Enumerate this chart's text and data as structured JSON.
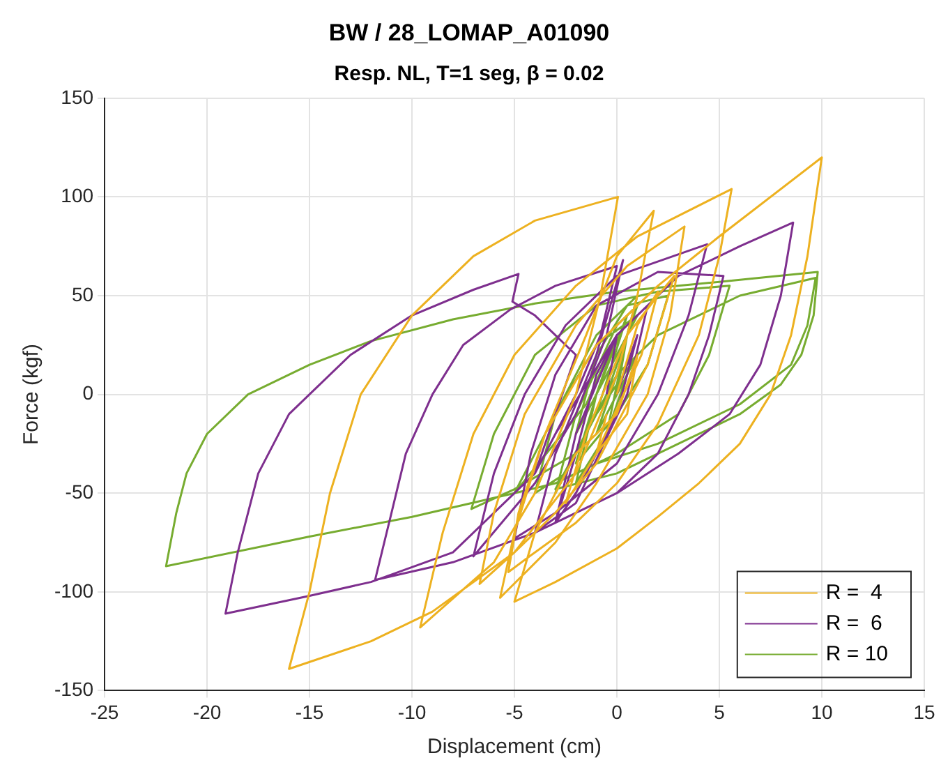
{
  "chart_data": {
    "type": "line",
    "title": "BW / 28_LOMAP_A01090",
    "subtitle": "Resp. NL, T=1 seg, β = 0.02",
    "xlabel": "Displacement (cm)",
    "ylabel": "Force (kgf)",
    "xlim": [
      -25,
      15
    ],
    "xticks": [
      -25,
      -20,
      -15,
      -10,
      -5,
      0,
      5,
      10,
      15
    ],
    "ylim": [
      -150,
      150
    ],
    "yticks": [
      -150,
      -100,
      -50,
      0,
      50,
      100,
      150
    ],
    "grid": true,
    "legend": "bottom right",
    "marker": "none",
    "line_style": "solid",
    "series": [
      {
        "name": "R =  4",
        "color": "#edb120",
        "x": [
          0,
          1,
          2,
          1.2,
          -1,
          -2.5,
          -1.5,
          0.5,
          2,
          2.8,
          1.5,
          -1,
          -3,
          -5,
          -6.7,
          -6,
          -4.5,
          -2,
          0.5,
          3.3,
          2.6,
          1.5,
          -1,
          -3,
          -5.7,
          -5,
          -3.5,
          -1.5,
          0,
          1.8,
          1,
          0,
          -2,
          -5,
          -9,
          -12,
          -16,
          -15,
          -14,
          -12.5,
          -10,
          -7,
          -4,
          0.05,
          -0.8,
          -2,
          -4,
          -6,
          -9.6,
          -8.5,
          -7,
          -5,
          -2,
          1,
          5.6,
          5,
          4,
          2,
          0,
          -2,
          -4,
          -5.3,
          -4.8,
          -3.5,
          -1,
          2,
          5,
          10,
          9.3,
          8.5,
          7.5,
          6,
          4,
          2,
          0,
          -3,
          -5,
          -4,
          -2,
          0,
          1,
          0.5,
          -1,
          -0.5
        ],
        "values": [
          0,
          35,
          52,
          20,
          -30,
          -55,
          -20,
          30,
          50,
          60,
          15,
          -35,
          -60,
          -80,
          -96,
          -60,
          -10,
          35,
          65,
          85,
          40,
          0,
          -45,
          -75,
          -103,
          -70,
          -20,
          30,
          70,
          93,
          50,
          10,
          -40,
          -80,
          -110,
          -125,
          -139,
          -100,
          -50,
          0,
          40,
          70,
          88,
          100,
          50,
          0,
          -50,
          -85,
          -118,
          -70,
          -20,
          20,
          55,
          80,
          104,
          70,
          30,
          -15,
          -45,
          -65,
          -80,
          -90,
          -60,
          -20,
          25,
          55,
          80,
          120,
          70,
          30,
          0,
          -25,
          -45,
          -62,
          -78,
          -95,
          -105,
          -70,
          -30,
          -10,
          20,
          -10,
          -30,
          -10
        ]
      },
      {
        "name": "R =  6",
        "color": "#7e2f8e",
        "x": [
          0,
          1,
          0,
          -2,
          -3,
          -2,
          0,
          1.5,
          0.5,
          -2,
          -4,
          -3,
          -1,
          0.3,
          -0.5,
          -2,
          -4,
          -7,
          -6,
          -4.5,
          -2.5,
          0,
          4.4,
          3.5,
          2,
          0,
          -3,
          -5,
          -4.2,
          -3,
          -1,
          2,
          5.2,
          4.5,
          3.5,
          2,
          0,
          -4,
          -8,
          -11.8,
          -11,
          -10.3,
          -9,
          -7.5,
          -5.2,
          -3,
          0,
          -0.8,
          -2,
          -4,
          -8,
          -12,
          -15,
          -19.1,
          -18.5,
          -17.5,
          -16,
          -13,
          -10,
          -7,
          -4.8,
          -5.1,
          -4,
          -2,
          -3,
          -4,
          -3,
          0,
          3,
          6,
          8.6,
          8,
          7,
          5.5,
          3,
          0,
          -3,
          -2,
          -1,
          0,
          -0.5
        ],
        "values": [
          0,
          30,
          -10,
          -50,
          -65,
          -20,
          30,
          45,
          0,
          -55,
          -70,
          -30,
          20,
          68,
          30,
          -10,
          -45,
          -82,
          -40,
          0,
          35,
          60,
          76,
          40,
          0,
          -35,
          -60,
          -73,
          -30,
          10,
          45,
          62,
          60,
          30,
          0,
          -30,
          -50,
          -70,
          -85,
          -94,
          -60,
          -30,
          0,
          25,
          43,
          55,
          65,
          30,
          0,
          -40,
          -80,
          -95,
          -102,
          -111,
          -80,
          -40,
          -10,
          20,
          40,
          53,
          61,
          47,
          40,
          20,
          -10,
          -40,
          -20,
          30,
          60,
          75,
          87,
          50,
          15,
          -10,
          -30,
          -50,
          -65,
          -30,
          10,
          30,
          0
        ]
      },
      {
        "name": "R = 10",
        "color": "#77ac30",
        "x": [
          0,
          0.5,
          -0.5,
          -2,
          -1,
          0.5,
          -1,
          -3,
          -2,
          0,
          1,
          -0.5,
          -2.5,
          -4,
          -3,
          -1,
          1,
          0,
          -2,
          -5,
          -7.1,
          -6,
          -4,
          -1,
          2,
          5.5,
          4.5,
          3,
          0,
          -3,
          -5,
          -3,
          -1,
          1,
          -0.5,
          -2,
          -1,
          0.5,
          2.5,
          1.5,
          0,
          -2,
          -1,
          0,
          -1.5,
          -5,
          -10,
          -15,
          -22,
          -21.5,
          -21,
          -20,
          -18,
          -15,
          -12,
          -8,
          -4,
          0,
          5,
          9.8,
          9.6,
          9,
          8,
          6,
          3,
          0,
          -3,
          -1,
          1,
          -1,
          0,
          2,
          6,
          9.7,
          9.3,
          8.5,
          6,
          2,
          -1,
          0.5
        ],
        "values": [
          0,
          30,
          -20,
          -45,
          0,
          40,
          -10,
          -50,
          -10,
          35,
          45,
          0,
          -40,
          -50,
          -10,
          30,
          50,
          10,
          -30,
          -48,
          -58,
          -20,
          20,
          45,
          52,
          55,
          20,
          -10,
          -30,
          -45,
          -50,
          -10,
          25,
          40,
          10,
          -20,
          20,
          45,
          50,
          15,
          -10,
          -35,
          0,
          30,
          -5,
          -50,
          -62,
          -72,
          -87,
          -60,
          -40,
          -20,
          0,
          15,
          27,
          38,
          46,
          52,
          57,
          62,
          40,
          20,
          5,
          -10,
          -25,
          -40,
          -48,
          -10,
          20,
          -20,
          10,
          30,
          50,
          59,
          35,
          15,
          -5,
          -25,
          -35,
          10
        ]
      }
    ]
  }
}
